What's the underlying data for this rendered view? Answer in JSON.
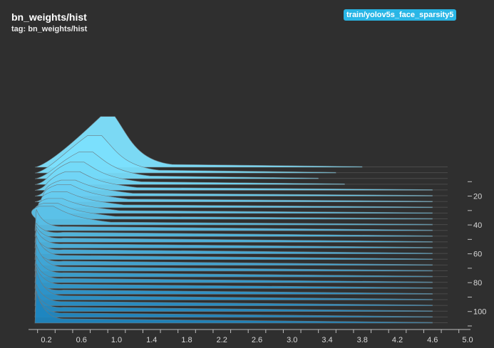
{
  "card": {
    "title": "bn_weights/hist",
    "tag": "tag: bn_weights/hist",
    "run": "train/yolov5s_face_sparsity5",
    "run_color": "#29b6e6"
  },
  "chart_data": {
    "type": "histogram-offset",
    "x_ticks": [
      "0.2",
      "0.6",
      "1.0",
      "1.4",
      "1.8",
      "2.2",
      "2.6",
      "3.0",
      "3.4",
      "3.8",
      "4.2",
      "4.6",
      "5.0"
    ],
    "y_ticks": [
      "20",
      "40",
      "60",
      "80",
      "100"
    ],
    "x_range": [
      0.05,
      5.0
    ],
    "y_range": [
      0,
      110
    ],
    "color_light": "#7fe3ff",
    "color_dark": "#1f86c0",
    "histograms": [
      {
        "step": 0,
        "peak_x": 0.9,
        "height": 0.95,
        "tail": 3.8
      },
      {
        "step": 4,
        "peak_x": 0.75,
        "height": 0.7,
        "tail": 3.5
      },
      {
        "step": 8,
        "peak_x": 0.65,
        "height": 0.5,
        "tail": 3.3
      },
      {
        "step": 12,
        "peak_x": 0.55,
        "height": 0.42,
        "tail": 3.6
      },
      {
        "step": 16,
        "peak_x": 0.5,
        "height": 0.35,
        "tail": 4.6
      },
      {
        "step": 20,
        "peak_x": 0.45,
        "height": 0.3,
        "tail": 4.6
      },
      {
        "step": 24,
        "peak_x": 0.4,
        "height": 0.32,
        "tail": 4.6
      },
      {
        "step": 28,
        "peak_x": 0.35,
        "height": 0.3,
        "tail": 4.6
      },
      {
        "step": 32,
        "peak_x": 0.3,
        "height": 0.28,
        "tail": 4.6
      },
      {
        "step": 36,
        "peak_x": 0.25,
        "height": 0.3,
        "tail": 4.6
      },
      {
        "step": 40,
        "peak_x": 0.2,
        "height": 0.35,
        "tail": 4.6
      },
      {
        "step": 44,
        "peak_x": 0.15,
        "height": 0.4,
        "tail": 4.6
      },
      {
        "step": 48,
        "peak_x": 0.12,
        "height": 0.25,
        "tail": 4.6
      },
      {
        "step": 52,
        "peak_x": 0.12,
        "height": 0.3,
        "tail": 4.6
      },
      {
        "step": 56,
        "peak_x": 0.1,
        "height": 0.35,
        "tail": 4.6
      },
      {
        "step": 60,
        "peak_x": 0.1,
        "height": 0.3,
        "tail": 4.6
      },
      {
        "step": 64,
        "peak_x": 0.1,
        "height": 0.45,
        "tail": 4.6
      },
      {
        "step": 68,
        "peak_x": 0.1,
        "height": 0.3,
        "tail": 4.6
      },
      {
        "step": 72,
        "peak_x": 0.1,
        "height": 0.5,
        "tail": 4.6
      },
      {
        "step": 76,
        "peak_x": 0.1,
        "height": 0.4,
        "tail": 4.6
      },
      {
        "step": 80,
        "peak_x": 0.1,
        "height": 0.35,
        "tail": 4.6
      },
      {
        "step": 84,
        "peak_x": 0.1,
        "height": 0.4,
        "tail": 4.6
      },
      {
        "step": 88,
        "peak_x": 0.1,
        "height": 0.3,
        "tail": 4.6
      },
      {
        "step": 92,
        "peak_x": 0.1,
        "height": 0.55,
        "tail": 4.6
      },
      {
        "step": 96,
        "peak_x": 0.1,
        "height": 0.4,
        "tail": 4.6
      },
      {
        "step": 100,
        "peak_x": 0.1,
        "height": 0.35,
        "tail": 4.6
      },
      {
        "step": 104,
        "peak_x": 0.1,
        "height": 0.45,
        "tail": 4.6
      },
      {
        "step": 108,
        "peak_x": 0.1,
        "height": 0.6,
        "tail": 4.6
      }
    ]
  }
}
